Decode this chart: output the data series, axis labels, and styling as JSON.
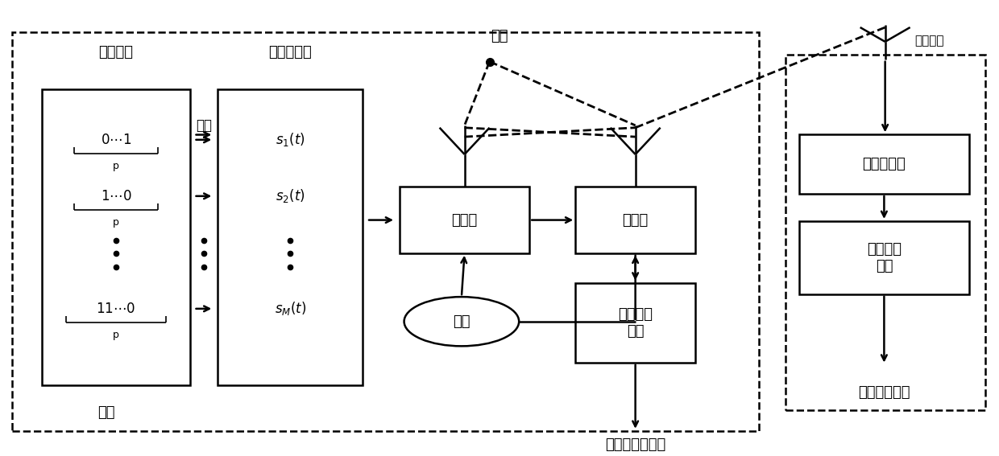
{
  "bg_color": "#ffffff",
  "fig_width": 12.4,
  "fig_height": 5.67,
  "dpi": 100,
  "label_tongxin_xinxi": "通信信息",
  "label_gongxiang_xinhaoku": "共享信号库",
  "label_tiaozhi": "调制",
  "label_leida": "雷达",
  "label_mubiao": "目标",
  "label_tongxin_shebei": "通信设备",
  "label_tongxin_jietiao": "通信信息解调",
  "label_mubiao_juli": "目标距离、速度",
  "label_fasheji": "发射机",
  "label_jieshouji": "接收机",
  "label_benzhen": "本振",
  "label_leida_xinhao_chuli": "雷达信号\n处理",
  "label_tongxin_jieshouji": "通信接收机",
  "label_tongxin_xinhao_chuli": "通信信号\n处理"
}
